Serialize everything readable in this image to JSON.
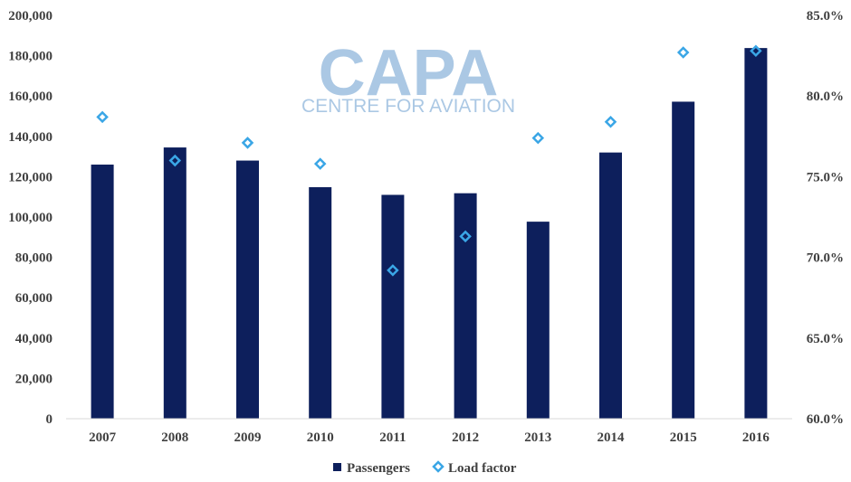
{
  "watermark": {
    "brand": "CAPA",
    "subtitle": "CENTRE FOR AVIATION"
  },
  "colors": {
    "bar": "#0d1f5c",
    "marker": "#3aa6e6",
    "axis": "#d9d9d9",
    "text": "#404040"
  },
  "chart_data": {
    "type": "bar",
    "categories": [
      "2007",
      "2008",
      "2009",
      "2010",
      "2011",
      "2012",
      "2013",
      "2014",
      "2015",
      "2016"
    ],
    "series": [
      {
        "name": "Passengers",
        "type": "bar",
        "axis": "left",
        "values": [
          126000,
          134500,
          128000,
          114800,
          111000,
          111800,
          97700,
          132000,
          157200,
          183800
        ]
      },
      {
        "name": "Load factor",
        "type": "scatter",
        "marker": "diamond",
        "axis": "right",
        "values": [
          78.7,
          76.0,
          77.1,
          75.8,
          69.2,
          71.3,
          77.4,
          78.4,
          82.7,
          82.8
        ]
      }
    ],
    "y_left": {
      "ylim": [
        0,
        200000
      ],
      "ticks": [
        "0",
        "20,000",
        "40,000",
        "60,000",
        "80,000",
        "100,000",
        "120,000",
        "140,000",
        "160,000",
        "180,000",
        "200,000"
      ]
    },
    "y_right": {
      "ylim": [
        60,
        85
      ],
      "ticks": [
        "60.0%",
        "65.0%",
        "70.0%",
        "75.0%",
        "80.0%",
        "85.0%"
      ]
    },
    "legend_position": "bottom",
    "grid": false
  }
}
